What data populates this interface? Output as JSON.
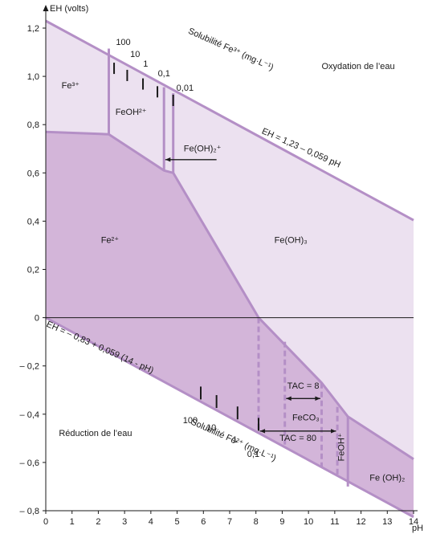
{
  "chart_data": {
    "type": "diagram",
    "title": "",
    "ylabel": "EH (volts)",
    "xlabel": "pH",
    "xlim": [
      0,
      14
    ],
    "ylim": [
      -0.8,
      1.2
    ],
    "x_ticks": [
      0,
      1,
      2,
      3,
      4,
      5,
      6,
      7,
      8,
      9,
      10,
      11,
      12,
      13,
      14
    ],
    "y_ticks": [
      {
        "v": 1.2,
        "label": "1,2"
      },
      {
        "v": 1.0,
        "label": "1,0"
      },
      {
        "v": 0.8,
        "label": "0,8"
      },
      {
        "v": 0.6,
        "label": "0,6"
      },
      {
        "v": 0.4,
        "label": "0,4"
      },
      {
        "v": 0.2,
        "label": "0,2"
      },
      {
        "v": 0.0,
        "label": "0"
      },
      {
        "v": -0.2,
        "label": "– 0,2"
      },
      {
        "v": -0.4,
        "label": "– 0,4"
      },
      {
        "v": -0.6,
        "label": "– 0,6"
      },
      {
        "v": -0.8,
        "label": "– 0,8"
      }
    ],
    "colors": {
      "light": "#ece1f0",
      "dark": "#d3b5d9",
      "line": "#b48fc6",
      "axis": "#1a1a1a"
    },
    "upper_line": {
      "label": "EH = 1,23 – 0,059 pH",
      "points": [
        [
          0,
          1.23
        ],
        [
          14,
          0.404
        ]
      ]
    },
    "lower_line": {
      "label": "EH = – 0,83 + 0,059 (14 - pH)",
      "points": [
        [
          0,
          0.0
        ],
        [
          14,
          -0.826
        ]
      ]
    },
    "region_boundaries": {
      "fe3_fe2": [
        [
          0,
          0.77
        ],
        [
          2.4,
          0.76
        ],
        [
          4.5,
          0.61
        ],
        [
          4.85,
          0.6
        ],
        [
          8.1,
          0.0
        ],
        [
          10.5,
          -0.27
        ],
        [
          11.5,
          -0.41
        ],
        [
          14,
          -0.586
        ]
      ],
      "fe3_feoh2": [
        [
          2.4,
          1.115
        ],
        [
          2.4,
          0.76
        ]
      ],
      "feoh2_feoh2p_left": [
        [
          4.5,
          0.955
        ],
        [
          4.5,
          0.61
        ]
      ],
      "feoh2_feoh2p_right": [
        [
          4.85,
          0.93
        ],
        [
          4.85,
          0.6
        ]
      ],
      "feoh3_upper_low": [
        [
          11.5,
          -0.41
        ],
        [
          11.5,
          -0.7
        ]
      ],
      "dashed": [
        [
          [
            8.1,
            0.0
          ],
          [
            8.1,
            -0.475
          ]
        ],
        [
          [
            9.1,
            -0.1
          ],
          [
            9.1,
            -0.535
          ]
        ],
        [
          [
            10.5,
            -0.27
          ],
          [
            10.5,
            -0.62
          ]
        ],
        [
          [
            11.1,
            -0.37
          ],
          [
            11.1,
            -0.66
          ]
        ]
      ]
    },
    "fe3_solubility": {
      "title": "Solubilité Fe³⁺ (mg·L⁻¹)",
      "labels": [
        {
          "text": "100",
          "x": 2.95,
          "y": 1.13
        },
        {
          "text": "10",
          "x": 3.4,
          "y": 1.08
        },
        {
          "text": "1",
          "x": 3.8,
          "y": 1.04
        },
        {
          "text": "0,1",
          "x": 4.5,
          "y": 1.0
        },
        {
          "text": "0,01",
          "x": 5.3,
          "y": 0.94
        }
      ],
      "ticks": [
        2.6,
        3.1,
        3.7,
        4.25,
        4.85
      ]
    },
    "fe2_solubility": {
      "title": "Solubilité Fe²⁺ (mg·L⁻¹)",
      "labels": [
        {
          "text": "100",
          "x": 5.5,
          "y": -0.39
        },
        {
          "text": "10",
          "x": 6.3,
          "y": -0.42
        },
        {
          "text": "1",
          "x": 7.2,
          "y": -0.47
        },
        {
          "text": "0,1",
          "x": 7.9,
          "y": -0.53
        }
      ],
      "ticks": [
        5.9,
        6.5,
        7.3,
        8.1
      ]
    },
    "region_labels": {
      "fe3": "Fe³⁺",
      "feoh2p": "FeOH²⁺",
      "feoh2plus": "Fe(OH)₂⁺",
      "fe2": "Fe²⁺",
      "feoh3": "Fe(OH)₃",
      "oxydation": "Oxydation de l’eau",
      "reduction": "Réduction de l’eau",
      "tac8": "TAC = 8",
      "feco3": "FeCO₃",
      "tac80": "TAC = 80",
      "feohplus": "FeOH⁺",
      "feoh2": "Fe (OH)₂"
    }
  }
}
